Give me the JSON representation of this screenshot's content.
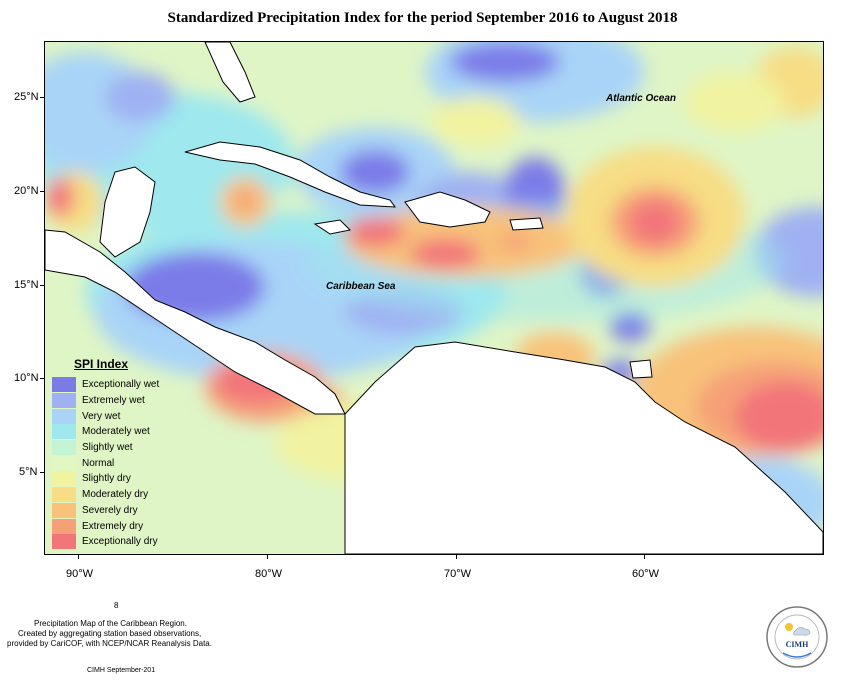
{
  "title": "Standardized Precipitation Index for the period September 2016 to August 2018",
  "map": {
    "ocean_labels": {
      "atlantic": "Atlantic Ocean",
      "caribbean": "Caribbean Sea"
    },
    "latitude_labels": [
      "25°N",
      "20°N",
      "15°N",
      "10°N",
      "5°N"
    ],
    "longitude_labels": [
      "90°W",
      "80°W",
      "70°W",
      "60°W"
    ]
  },
  "legend": {
    "title": "SPI Index",
    "items": [
      {
        "label": "Exceptionally wet",
        "color": "#7b7be8"
      },
      {
        "label": "Extremely wet",
        "color": "#9fb1f2"
      },
      {
        "label": "Very wet",
        "color": "#a9d4f7"
      },
      {
        "label": "Moderately wet",
        "color": "#9ee8ee"
      },
      {
        "label": "Slightly wet",
        "color": "#c4f3d6"
      },
      {
        "label": "Normal",
        "color": "#e3f7c2"
      },
      {
        "label": "Slightly dry",
        "color": "#f1f3a0"
      },
      {
        "label": "Moderately dry",
        "color": "#f7dd84"
      },
      {
        "label": "Severely dry",
        "color": "#f8c27a"
      },
      {
        "label": "Extremely dry",
        "color": "#f6a078"
      },
      {
        "label": "Exceptionally dry",
        "color": "#f2757a"
      }
    ]
  },
  "footer": {
    "stray": "8",
    "line1": "Precipitation Map of the Caribbean Region.",
    "line2": "Created by aggregating station based observations,",
    "line3": "provided by CariCOF, with NCEP/NCAR Reanalysis Data.",
    "credit": "CIMH September-201"
  },
  "logo": {
    "acronym": "CIMH"
  }
}
